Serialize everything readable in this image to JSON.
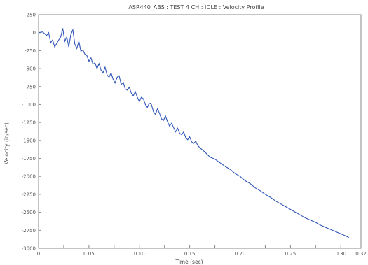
{
  "chart_data": {
    "type": "line",
    "title": "ASR440_ABS : TEST 4 CH : IDLE : Velocity Profile",
    "xlabel": "Time (sec)",
    "ylabel": "Velocity (in/sec)",
    "xlim": [
      0,
      0.32
    ],
    "ylim": [
      -3000,
      250
    ],
    "x_ticks": [
      0,
      0.025,
      0.05,
      0.075,
      0.1,
      0.125,
      0.15,
      0.175,
      0.2,
      0.225,
      0.25,
      0.275,
      0.3,
      0.325
    ],
    "x_tick_labels": [
      "0",
      "",
      "0.05",
      "",
      "0.10",
      "",
      "0.15",
      "",
      "0.20",
      "",
      "0.25",
      "",
      "0.30",
      "0.32"
    ],
    "y_ticks": [
      250,
      0,
      -250,
      -500,
      -750,
      -1000,
      -1250,
      -1500,
      -1750,
      -2000,
      -2250,
      -2500,
      -2750,
      -3000
    ],
    "y_tick_labels": [
      "250",
      "0",
      "-250",
      "-500",
      "-750",
      "-1000",
      "-1250",
      "-1500",
      "-1750",
      "-2000",
      "-2250",
      "-2500",
      "-2750",
      "-3000"
    ],
    "grid": false,
    "series": [
      {
        "color": "#2f56b8",
        "x": [
          0,
          0.004,
          0.008,
          0.01,
          0.012,
          0.014,
          0.016,
          0.018,
          0.02,
          0.022,
          0.024,
          0.026,
          0.028,
          0.03,
          0.032,
          0.034,
          0.036,
          0.038,
          0.04,
          0.042,
          0.044,
          0.046,
          0.048,
          0.05,
          0.052,
          0.054,
          0.056,
          0.058,
          0.06,
          0.062,
          0.064,
          0.066,
          0.068,
          0.07,
          0.072,
          0.074,
          0.076,
          0.078,
          0.08,
          0.082,
          0.084,
          0.086,
          0.088,
          0.09,
          0.092,
          0.094,
          0.096,
          0.098,
          0.1,
          0.102,
          0.104,
          0.106,
          0.108,
          0.11,
          0.112,
          0.114,
          0.116,
          0.118,
          0.12,
          0.122,
          0.124,
          0.126,
          0.128,
          0.13,
          0.132,
          0.134,
          0.136,
          0.138,
          0.14,
          0.142,
          0.144,
          0.146,
          0.148,
          0.15,
          0.152,
          0.154,
          0.156,
          0.158,
          0.16,
          0.165,
          0.17,
          0.175,
          0.18,
          0.185,
          0.19,
          0.195,
          0.2,
          0.205,
          0.21,
          0.215,
          0.22,
          0.225,
          0.23,
          0.235,
          0.24,
          0.245,
          0.25,
          0.255,
          0.26,
          0.265,
          0.27,
          0.275,
          0.28,
          0.285,
          0.29,
          0.295,
          0.3,
          0.305,
          0.308
        ],
        "values": [
          0,
          10,
          -40,
          0,
          -140,
          -100,
          -200,
          -150,
          -100,
          -60,
          60,
          -120,
          -60,
          -200,
          -30,
          40,
          -160,
          -220,
          -120,
          -260,
          -240,
          -300,
          -320,
          -400,
          -350,
          -440,
          -420,
          -500,
          -430,
          -520,
          -560,
          -480,
          -590,
          -620,
          -560,
          -650,
          -700,
          -620,
          -600,
          -720,
          -690,
          -780,
          -800,
          -760,
          -840,
          -880,
          -820,
          -900,
          -960,
          -900,
          -920,
          -1000,
          -1040,
          -980,
          -1000,
          -1100,
          -1140,
          -1060,
          -1120,
          -1200,
          -1220,
          -1160,
          -1240,
          -1300,
          -1260,
          -1320,
          -1380,
          -1330,
          -1400,
          -1420,
          -1380,
          -1460,
          -1490,
          -1450,
          -1520,
          -1540,
          -1510,
          -1570,
          -1600,
          -1660,
          -1730,
          -1760,
          -1810,
          -1860,
          -1900,
          -1960,
          -2000,
          -2060,
          -2100,
          -2160,
          -2200,
          -2250,
          -2290,
          -2340,
          -2380,
          -2420,
          -2460,
          -2500,
          -2540,
          -2580,
          -2610,
          -2640,
          -2680,
          -2710,
          -2740,
          -2770,
          -2800,
          -2830,
          -2850
        ]
      }
    ]
  }
}
